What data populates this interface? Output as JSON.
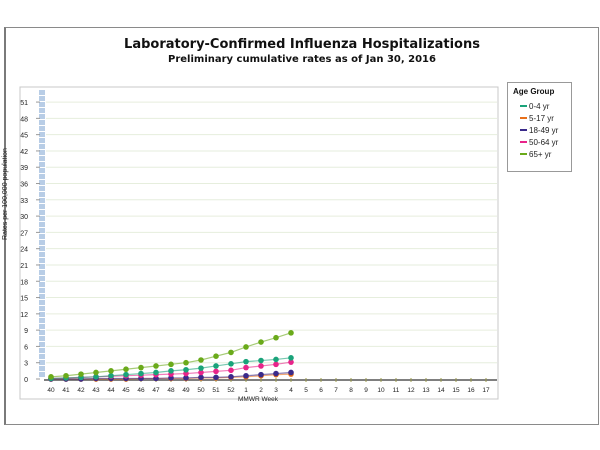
{
  "chart_data": {
    "type": "line",
    "title": "Laboratory-Confirmed Influenza Hospitalizations",
    "subtitle": "Preliminary cumulative rates as of Jan 30, 2016",
    "xlabel": "MMWR Week",
    "ylabel": "Rates per 100,000 population",
    "ylim": [
      0,
      53
    ],
    "yticks": [
      0,
      3,
      6,
      9,
      12,
      15,
      18,
      21,
      24,
      27,
      30,
      33,
      36,
      39,
      42,
      45,
      48,
      51
    ],
    "categories": [
      "40",
      "41",
      "42",
      "43",
      "44",
      "45",
      "46",
      "47",
      "48",
      "49",
      "50",
      "51",
      "52",
      "1",
      "2",
      "3",
      "4",
      "5",
      "6",
      "7",
      "8",
      "9",
      "10",
      "11",
      "12",
      "13",
      "14",
      "15",
      "16",
      "17"
    ],
    "legend_title": "Age Group",
    "legend_position": "right",
    "grid": true,
    "series": [
      {
        "name": "0-4 yr",
        "color": "#1aa37a",
        "values": [
          0.1,
          0.2,
          0.3,
          0.4,
          0.6,
          0.8,
          1.0,
          1.2,
          1.5,
          1.7,
          2.0,
          2.4,
          2.8,
          3.2,
          3.4,
          3.6,
          3.9
        ]
      },
      {
        "name": "5-17 yr",
        "color": "#e8701a",
        "values": [
          0.0,
          0.0,
          0.0,
          0.0,
          0.0,
          0.0,
          0.1,
          0.1,
          0.1,
          0.1,
          0.2,
          0.2,
          0.3,
          0.4,
          0.6,
          0.8,
          0.9
        ]
      },
      {
        "name": "18-49 yr",
        "color": "#3a2a8a",
        "values": [
          0.0,
          0.0,
          0.0,
          0.1,
          0.1,
          0.1,
          0.1,
          0.1,
          0.2,
          0.2,
          0.3,
          0.3,
          0.4,
          0.6,
          0.8,
          1.0,
          1.2
        ]
      },
      {
        "name": "50-64 yr",
        "color": "#e8248a",
        "values": [
          0.1,
          0.2,
          0.3,
          0.4,
          0.5,
          0.6,
          0.7,
          0.8,
          0.9,
          1.0,
          1.2,
          1.4,
          1.6,
          2.1,
          2.4,
          2.7,
          3.1
        ]
      },
      {
        "name": "65+ yr",
        "color": "#6aaa1a",
        "values": [
          0.4,
          0.6,
          0.9,
          1.2,
          1.5,
          1.8,
          2.1,
          2.4,
          2.7,
          3.0,
          3.5,
          4.2,
          4.9,
          5.9,
          6.8,
          7.6,
          8.5
        ]
      }
    ]
  }
}
